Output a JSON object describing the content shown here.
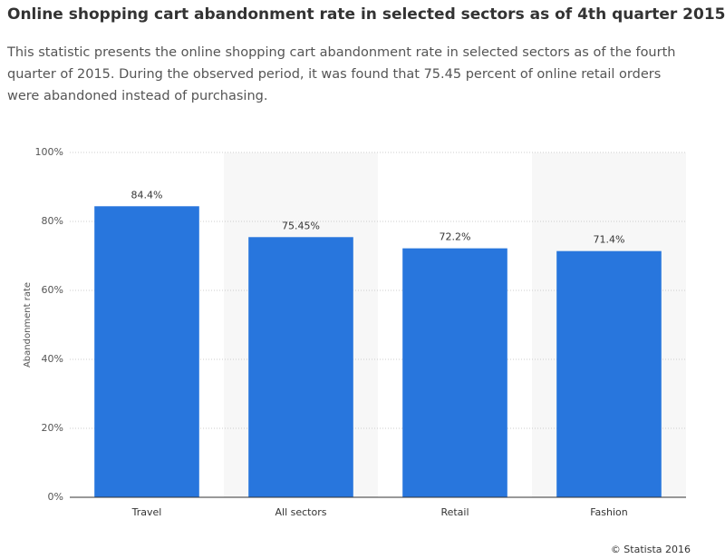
{
  "chart_data": {
    "type": "bar",
    "title": "Online shopping cart abandonment rate in selected sectors as of 4th quarter 2015",
    "subtitle": "This statistic presents the online shopping cart abandonment rate in selected sectors as of the fourth quarter of 2015. During the observed period, it was found that 75.45 percent of online retail orders were abandoned instead of purchasing.",
    "y_label": "Abandonment rate",
    "categories": [
      "Travel",
      "All sectors",
      "Retail",
      "Fashion"
    ],
    "values": [
      84.4,
      75.45,
      72.2,
      71.4
    ],
    "value_labels": [
      "84.4%",
      "75.45%",
      "72.2%",
      "71.4%"
    ],
    "color": "#2876dd",
    "ylim": [
      0,
      100
    ],
    "yticks": [
      {
        "value": 0,
        "label": "0%"
      },
      {
        "value": 20,
        "label": "20%"
      },
      {
        "value": 40,
        "label": "40%"
      },
      {
        "value": 60,
        "label": "60%"
      },
      {
        "value": 80,
        "label": "80%"
      },
      {
        "value": 100,
        "label": "100%"
      }
    ],
    "grid": true,
    "source": "© Statista 2016"
  }
}
